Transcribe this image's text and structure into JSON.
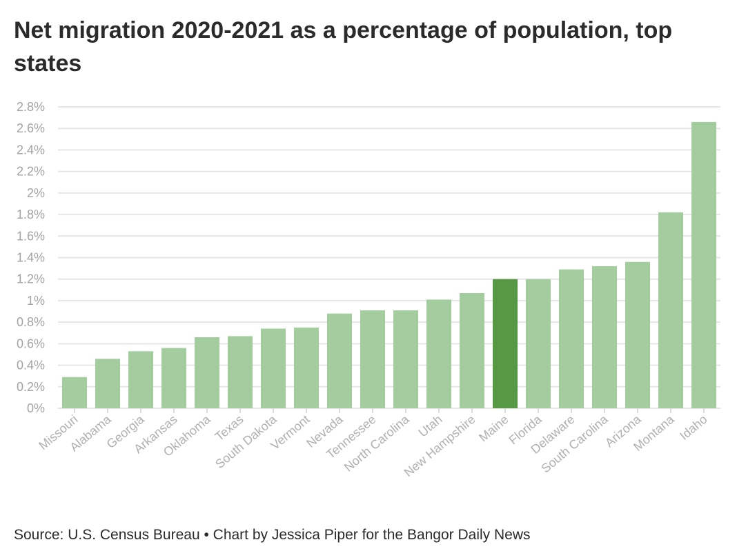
{
  "title": "Net migration 2020-2021 as a percentage of population, top states",
  "source": "Source: U.S. Census Bureau • Chart by Jessica Piper for the Bangor Daily News",
  "colors": {
    "bar": "#a4cd9f",
    "highlight": "#569844",
    "grid": "#e6e6e6",
    "axis_text": "#a3a3a3"
  },
  "chart_data": {
    "type": "bar",
    "title": "Net migration 2020-2021 as a percentage of population, top states",
    "xlabel": "",
    "ylabel": "",
    "ylim": [
      0,
      2.8
    ],
    "grid": true,
    "highlight_category": "Maine",
    "categories": [
      "Missouri",
      "Alabama",
      "Georgia",
      "Arkansas",
      "Oklahoma",
      "Texas",
      "South Dakota",
      "Vermont",
      "Nevada",
      "Tennessee",
      "North Carolina",
      "Utah",
      "New Hampshire",
      "Maine",
      "Florida",
      "Delaware",
      "South Carolina",
      "Arizona",
      "Montana",
      "Idaho"
    ],
    "values": [
      0.29,
      0.46,
      0.53,
      0.56,
      0.66,
      0.67,
      0.74,
      0.75,
      0.88,
      0.91,
      0.91,
      1.01,
      1.07,
      1.2,
      1.2,
      1.29,
      1.32,
      1.36,
      1.82,
      2.66
    ],
    "y_ticks": [
      "0%",
      "0.2%",
      "0.4%",
      "0.6%",
      "0.8%",
      "1%",
      "1.2%",
      "1.4%",
      "1.6%",
      "1.8%",
      "2%",
      "2.2%",
      "2.4%",
      "2.6%",
      "2.8%"
    ]
  }
}
